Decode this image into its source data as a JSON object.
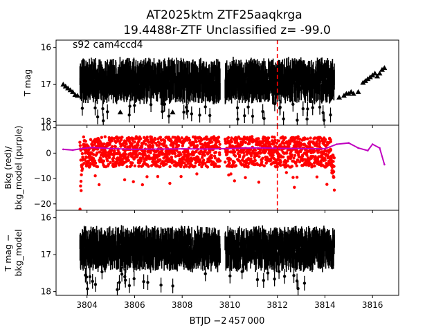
{
  "title_line1": "AT2025ktm  ZTF25aaqkrga",
  "title_line2": "19.4488r-ZTF Unclassified z= -99.0",
  "annotation": "s92 cam4ccd4",
  "xlabel": "BTJD −2 457 000",
  "chart_data": [
    {
      "type": "scatter",
      "panel": "top",
      "ylabel": "T mag",
      "ylim": [
        18.1,
        15.8
      ],
      "xlim": [
        3802.7,
        3817.1
      ],
      "yticks": [
        "16",
        "17",
        "18"
      ],
      "ytick_values": [
        16,
        17,
        18
      ],
      "inverted_y": true,
      "vline": {
        "x": 3812.0,
        "color": "#ff0000",
        "style": "dashed"
      },
      "series": [
        {
          "marker": "errorbar-points",
          "color": "#000000",
          "segments": [
            [
              3803.7,
              3809.6
            ],
            [
              3809.8,
              3814.4
            ]
          ],
          "y_center": 16.9,
          "y_spread": 0.55
        },
        {
          "marker": "triangle",
          "color": "#000000",
          "points": [
            [
              3803.0,
              17.0
            ],
            [
              3803.1,
              17.05
            ],
            [
              3803.2,
              17.1
            ],
            [
              3803.3,
              17.15
            ],
            [
              3803.4,
              17.2
            ],
            [
              3803.5,
              17.28
            ],
            [
              3803.6,
              17.3
            ],
            [
              3805.4,
              17.75
            ],
            [
              3807.6,
              17.75
            ],
            [
              3814.6,
              17.35
            ],
            [
              3814.8,
              17.3
            ],
            [
              3814.9,
              17.25
            ],
            [
              3815.0,
              17.25
            ],
            [
              3815.1,
              17.2
            ],
            [
              3815.2,
              17.25
            ],
            [
              3815.4,
              17.2
            ],
            [
              3815.6,
              16.95
            ],
            [
              3815.7,
              16.9
            ],
            [
              3815.8,
              16.85
            ],
            [
              3815.9,
              16.8
            ],
            [
              3816.0,
              16.75
            ],
            [
              3816.1,
              16.7
            ],
            [
              3816.2,
              16.78
            ],
            [
              3816.3,
              16.7
            ],
            [
              3816.4,
              16.6
            ],
            [
              3816.5,
              16.55
            ]
          ]
        }
      ]
    },
    {
      "type": "scatter",
      "panel": "middle",
      "ylabel": "Bkg (red)/\nbkg_model (purple)",
      "ylim": [
        -22.5,
        11
      ],
      "xlim": [
        3802.7,
        3817.1
      ],
      "yticks": [
        "10",
        "0",
        "−10",
        "−20"
      ],
      "ytick_values": [
        10,
        0,
        -10,
        -20
      ],
      "vline": {
        "x": 3812.0,
        "color": "#ff0000",
        "style": "dashed"
      },
      "series": [
        {
          "name": "Bkg",
          "color": "#ff0000",
          "segments": [
            [
              3803.7,
              3809.6
            ],
            [
              3809.8,
              3814.4
            ]
          ],
          "y_center": 0.5,
          "y_spread": 6
        },
        {
          "name": "bkg_model",
          "color": "#bf00bf",
          "points": [
            [
              3803.0,
              1.5
            ],
            [
              3803.4,
              1.2
            ],
            [
              3803.8,
              1.8
            ],
            [
              3804.2,
              2.2
            ],
            [
              3805.0,
              1.8
            ],
            [
              3806.0,
              1.5
            ],
            [
              3807.0,
              1.6
            ],
            [
              3808.0,
              1.7
            ],
            [
              3809.0,
              1.6
            ],
            [
              3810.0,
              1.8
            ],
            [
              3811.0,
              2.1
            ],
            [
              3812.0,
              1.9
            ],
            [
              3813.0,
              1.8
            ],
            [
              3814.0,
              1.7
            ],
            [
              3814.5,
              3.5
            ],
            [
              3815.0,
              4.0
            ],
            [
              3815.4,
              2.0
            ],
            [
              3815.8,
              1.0
            ],
            [
              3816.0,
              3.5
            ],
            [
              3816.3,
              2.0
            ],
            [
              3816.5,
              -4.5
            ]
          ]
        }
      ]
    },
    {
      "type": "scatter",
      "panel": "bottom",
      "ylabel": "T mag −\nbkg_model",
      "ylim": [
        18.1,
        15.8
      ],
      "xlim": [
        3802.7,
        3817.1
      ],
      "yticks": [
        "16",
        "17",
        "18"
      ],
      "ytick_values": [
        16,
        17,
        18
      ],
      "inverted_y": true,
      "xticks": [
        "3804",
        "3806",
        "3808",
        "3810",
        "3812",
        "3814",
        "3816"
      ],
      "xtick_values": [
        3804,
        3806,
        3808,
        3810,
        3812,
        3814,
        3816
      ],
      "series": [
        {
          "marker": "errorbar-points",
          "color": "#000000",
          "segments": [
            [
              3803.7,
              3809.6
            ],
            [
              3809.8,
              3814.4
            ]
          ],
          "y_center": 16.85,
          "y_spread": 0.55
        }
      ]
    }
  ]
}
